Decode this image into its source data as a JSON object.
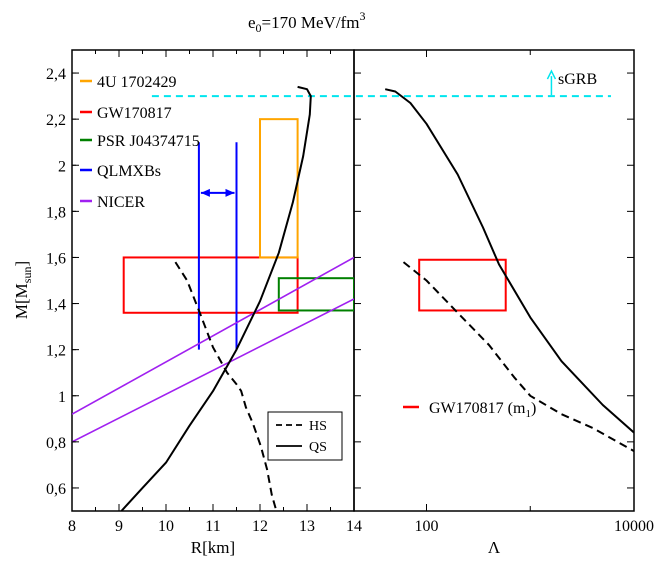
{
  "chart_data": {
    "title": "e",
    "title_sub": "0",
    "title_rest": "=170 MeV/fm",
    "title_sup": "3",
    "ylabel_main": "M[M",
    "ylabel_sub": "sun",
    "ylabel_close": "]",
    "ylim": [
      0.5,
      2.5
    ],
    "yticks": [
      {
        "v": 0.6,
        "label": "0,6"
      },
      {
        "v": 0.8,
        "label": "0,8"
      },
      {
        "v": 1.0,
        "label": "1"
      },
      {
        "v": 1.2,
        "label": "1,2"
      },
      {
        "v": 1.4,
        "label": "1,4"
      },
      {
        "v": 1.6,
        "label": "1,6"
      },
      {
        "v": 1.8,
        "label": "1,8"
      },
      {
        "v": 2.0,
        "label": "2"
      },
      {
        "v": 2.2,
        "label": "2,2"
      },
      {
        "v": 2.4,
        "label": "2,4"
      }
    ],
    "panels": [
      {
        "type": "line",
        "xlabel": "R[km]",
        "xlim": [
          8,
          14
        ],
        "xticks": [
          {
            "v": 8,
            "label": "8"
          },
          {
            "v": 9,
            "label": "9"
          },
          {
            "v": 10,
            "label": "10"
          },
          {
            "v": 11,
            "label": "11"
          },
          {
            "v": 12,
            "label": "12"
          },
          {
            "v": 13,
            "label": "13"
          },
          {
            "v": 14,
            "label": "14"
          }
        ],
        "series": [
          {
            "name": "HS",
            "style": "dashed",
            "color": "#000000",
            "points": [
              [
                10.2,
                1.58
              ],
              [
                10.45,
                1.5
              ],
              [
                10.72,
                1.36
              ],
              [
                11.0,
                1.21
              ],
              [
                11.3,
                1.1
              ],
              [
                11.5,
                1.05
              ],
              [
                11.6,
                1.02
              ],
              [
                11.7,
                0.95
              ],
              [
                11.85,
                0.88
              ],
              [
                12.02,
                0.78
              ],
              [
                12.15,
                0.68
              ],
              [
                12.25,
                0.57
              ],
              [
                12.35,
                0.5
              ]
            ]
          },
          {
            "name": "QS",
            "style": "solid",
            "color": "#000000",
            "points": [
              [
                9.05,
                0.5
              ],
              [
                9.5,
                0.6
              ],
              [
                10.0,
                0.71
              ],
              [
                10.5,
                0.87
              ],
              [
                11.0,
                1.02
              ],
              [
                11.5,
                1.2
              ],
              [
                12.0,
                1.41
              ],
              [
                12.4,
                1.62
              ],
              [
                12.7,
                1.84
              ],
              [
                12.92,
                2.04
              ],
              [
                13.06,
                2.22
              ],
              [
                13.08,
                2.3
              ],
              [
                13.0,
                2.33
              ],
              [
                12.8,
                2.34
              ]
            ]
          }
        ],
        "constraints": [
          {
            "name": "GW170817",
            "kind": "rect",
            "color": "#ff0000",
            "x": [
              9.1,
              12.8
            ],
            "y": [
              1.36,
              1.6
            ]
          },
          {
            "name": "4U 1702429",
            "kind": "rect",
            "color": "#ffa500",
            "x": [
              12.0,
              12.8
            ],
            "y": [
              1.6,
              2.2
            ]
          },
          {
            "name": "PSR J04374715",
            "kind": "rect",
            "color": "#008000",
            "x": [
              12.4,
              14.0
            ],
            "y": [
              1.37,
              1.51
            ]
          },
          {
            "name": "QLMXBs",
            "kind": "vlines",
            "color": "#0000ff",
            "x": [
              10.7,
              11.5
            ],
            "y": [
              1.2,
              2.1
            ],
            "arrow_y": 1.88
          },
          {
            "name": "NICER",
            "kind": "band",
            "color": "#a020f0",
            "lines": [
              [
                [
                  8.0,
                  0.92
                ],
                [
                  14.0,
                  1.6
                ]
              ],
              [
                [
                  8.0,
                  0.8
                ],
                [
                  14.0,
                  1.42
                ]
              ]
            ]
          }
        ],
        "legend_top": [
          "4U 1702429",
          "GW170817",
          "PSR J04374715",
          "QLMXBs",
          "NICER"
        ],
        "legend_bottom": [
          "HS",
          "QS"
        ]
      },
      {
        "type": "line",
        "xlabel": "Λ",
        "xscale": "log",
        "xlim": [
          20,
          10000
        ],
        "xticks": [
          {
            "v": 100,
            "label": "100"
          },
          {
            "v": 10000,
            "label": "10000"
          }
        ],
        "minor_ticks": [
          1000
        ],
        "series": [
          {
            "name": "HS",
            "style": "dashed",
            "color": "#000000",
            "points": [
              [
                60,
                1.58
              ],
              [
                100,
                1.5
              ],
              [
                200,
                1.36
              ],
              [
                400,
                1.22
              ],
              [
                700,
                1.08
              ],
              [
                1000,
                1.0
              ],
              [
                2000,
                0.92
              ],
              [
                4000,
                0.86
              ],
              [
                10000,
                0.76
              ]
            ]
          },
          {
            "name": "QS",
            "style": "solid",
            "color": "#000000",
            "points": [
              [
                40,
                2.33
              ],
              [
                50,
                2.32
              ],
              [
                70,
                2.27
              ],
              [
                100,
                2.18
              ],
              [
                200,
                1.96
              ],
              [
                350,
                1.73
              ],
              [
                500,
                1.57
              ],
              [
                1000,
                1.34
              ],
              [
                2000,
                1.15
              ],
              [
                5000,
                0.96
              ],
              [
                10000,
                0.84
              ]
            ]
          }
        ],
        "constraints": [
          {
            "name": "GW170817",
            "kind": "rect",
            "color": "#ff0000",
            "x": [
              85,
              580
            ],
            "y": [
              1.37,
              1.59
            ]
          }
        ],
        "legend": {
          "label": "GW170817 (m",
          "sub": "1",
          "close": ")",
          "color": "#ff0000"
        }
      }
    ],
    "sgrb": {
      "label": "sGRB",
      "color": "#00e5ee",
      "y": 2.3
    }
  }
}
